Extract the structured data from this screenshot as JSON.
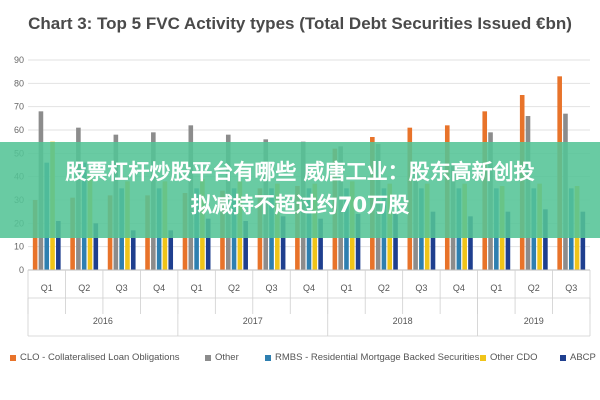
{
  "chart_data": {
    "type": "bar",
    "title": "Chart 3: Top 5 FVC Activity types (Total Debt Securities Issued €bn)",
    "xlabel": "",
    "ylabel": "",
    "ylim": [
      0,
      90
    ],
    "yticks": [
      0,
      10,
      20,
      30,
      40,
      50,
      60,
      70,
      80,
      90
    ],
    "grid": true,
    "legend_position": "bottom",
    "quarters": [
      "Q1",
      "Q2",
      "Q3",
      "Q4",
      "Q1",
      "Q2",
      "Q3",
      "Q4",
      "Q1",
      "Q2",
      "Q3",
      "Q4",
      "Q1",
      "Q2",
      "Q3"
    ],
    "years": [
      {
        "label": "2016",
        "start": 0,
        "end": 3
      },
      {
        "label": "2017",
        "start": 4,
        "end": 7
      },
      {
        "label": "2018",
        "start": 8,
        "end": 11
      },
      {
        "label": "2019",
        "start": 12,
        "end": 14
      }
    ],
    "series": [
      {
        "name": "CLO - Collateralised Loan Obligations",
        "color": "#e8732a",
        "values": [
          30,
          31,
          32,
          32,
          33,
          34,
          35,
          36,
          52,
          57,
          61,
          62,
          68,
          75,
          83
        ]
      },
      {
        "name": "Other",
        "color": "#8c8c8c",
        "values": [
          68,
          61,
          58,
          59,
          62,
          58,
          56,
          55,
          53,
          54,
          44,
          45,
          59,
          66,
          67
        ]
      },
      {
        "name": "RMBS - Residential Mortgage Backed Securities",
        "color": "#2e7fb0",
        "values": [
          46,
          46,
          35,
          35,
          35,
          35,
          35,
          35,
          35,
          35,
          35,
          35,
          35,
          35,
          35
        ]
      },
      {
        "name": "Other CDO",
        "color": "#f0c419",
        "values": [
          55,
          41,
          38,
          38,
          39,
          38,
          37,
          37,
          38,
          37,
          37,
          37,
          36,
          37,
          36
        ]
      },
      {
        "name": "ABCP",
        "color": "#1f3f8f",
        "values": [
          21,
          20,
          17,
          17,
          22,
          21,
          23,
          22,
          24,
          24,
          25,
          23,
          25,
          26,
          25
        ]
      }
    ]
  },
  "overlay": {
    "line1": "股票杠杆炒股平台有哪些 威唐工业：股东高新创投",
    "line2": "拟减持不超过约70万股"
  }
}
